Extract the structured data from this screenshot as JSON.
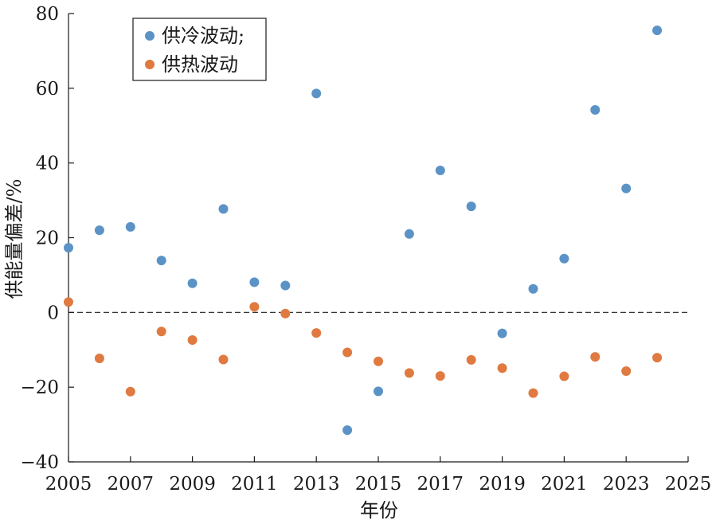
{
  "chart_data": {
    "type": "scatter",
    "title": "",
    "xlabel": "年份",
    "ylabel": "供能量偏差/%",
    "xlim": [
      2005,
      2025
    ],
    "ylim": [
      -40,
      80
    ],
    "x_ticks": [
      "2005",
      "2007",
      "2009",
      "2011",
      "2013",
      "2015",
      "2017",
      "2019",
      "2021",
      "2023",
      "2025"
    ],
    "y_ticks": [
      "80",
      "60",
      "40",
      "20",
      "0",
      "−20",
      "−40"
    ],
    "reference_line": {
      "y": 0,
      "style": "dashed"
    },
    "grid": false,
    "legend_position": "top-left",
    "series": [
      {
        "name": "供冷波动;",
        "color": "#5b93c6",
        "points": [
          {
            "x": 2005,
            "y": 17.3
          },
          {
            "x": 2006,
            "y": 22.0
          },
          {
            "x": 2007,
            "y": 22.9
          },
          {
            "x": 2008,
            "y": 13.9
          },
          {
            "x": 2009,
            "y": 7.8
          },
          {
            "x": 2010,
            "y": 27.7
          },
          {
            "x": 2011,
            "y": 8.1
          },
          {
            "x": 2012,
            "y": 7.2
          },
          {
            "x": 2013,
            "y": 58.6
          },
          {
            "x": 2014,
            "y": -31.5
          },
          {
            "x": 2015,
            "y": -21.1
          },
          {
            "x": 2016,
            "y": 21.0
          },
          {
            "x": 2017,
            "y": 38.0
          },
          {
            "x": 2018,
            "y": 28.4
          },
          {
            "x": 2019,
            "y": -5.6
          },
          {
            "x": 2020,
            "y": 6.3
          },
          {
            "x": 2021,
            "y": 14.4
          },
          {
            "x": 2022,
            "y": 54.2
          },
          {
            "x": 2023,
            "y": 33.2
          },
          {
            "x": 2024,
            "y": 75.5
          }
        ]
      },
      {
        "name": "供热波动",
        "color": "#e07a40",
        "points": [
          {
            "x": 2005,
            "y": 2.8
          },
          {
            "x": 2006,
            "y": -12.3
          },
          {
            "x": 2007,
            "y": -21.2
          },
          {
            "x": 2008,
            "y": -5.1
          },
          {
            "x": 2009,
            "y": -7.4
          },
          {
            "x": 2010,
            "y": -12.6
          },
          {
            "x": 2011,
            "y": 1.5
          },
          {
            "x": 2012,
            "y": -0.3
          },
          {
            "x": 2013,
            "y": -5.5
          },
          {
            "x": 2014,
            "y": -10.7
          },
          {
            "x": 2015,
            "y": -13.1
          },
          {
            "x": 2016,
            "y": -16.2
          },
          {
            "x": 2017,
            "y": -17.0
          },
          {
            "x": 2018,
            "y": -12.7
          },
          {
            "x": 2019,
            "y": -14.9
          },
          {
            "x": 2020,
            "y": -21.6
          },
          {
            "x": 2021,
            "y": -17.1
          },
          {
            "x": 2022,
            "y": -11.9
          },
          {
            "x": 2023,
            "y": -15.7
          },
          {
            "x": 2024,
            "y": -12.1
          }
        ]
      }
    ]
  }
}
